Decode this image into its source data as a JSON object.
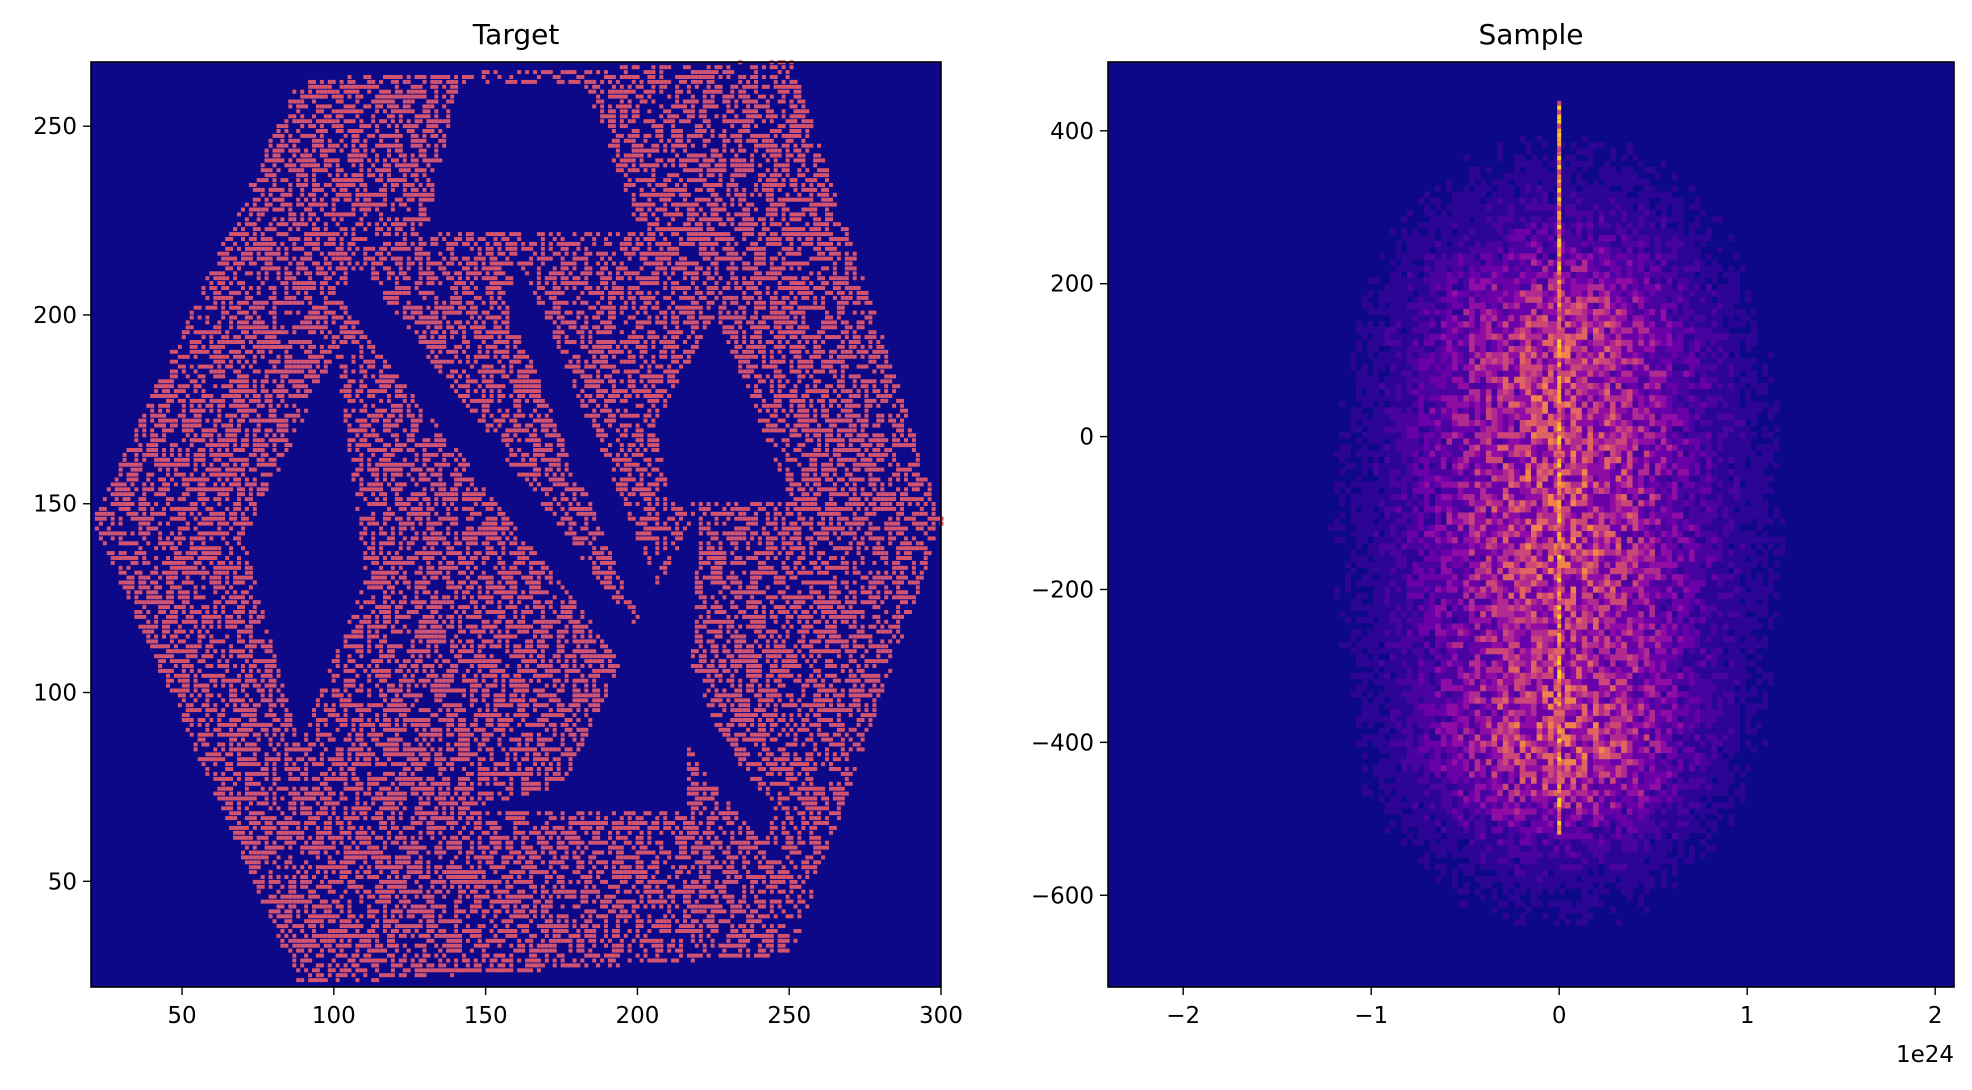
{
  "figure": {
    "background": "#ffffff",
    "axis_color": "#000000"
  },
  "chart_data": [
    {
      "type": "heatmap",
      "title": "Target",
      "xlabel": "",
      "ylabel": "",
      "xlim": [
        20,
        300
      ],
      "ylim": [
        22,
        267
      ],
      "x_ticks": [
        50,
        100,
        150,
        200,
        250,
        300
      ],
      "x_tick_labels": [
        "50",
        "100",
        "150",
        "200",
        "250",
        "300"
      ],
      "y_ticks": [
        50,
        100,
        150,
        200,
        250
      ],
      "y_tick_labels": [
        "50",
        "100",
        "150",
        "200",
        "250"
      ],
      "colormap": "plasma",
      "background_color": "#0d0887",
      "point_color": "#d5546e",
      "description_regions": [
        {
          "name": "left-diamond",
          "points": [
            [
              20,
              145
            ],
            [
              62,
              215
            ],
            [
              95,
              145
            ],
            [
              62,
              75
            ]
          ]
        },
        {
          "name": "lower-band",
          "points": [
            [
              95,
              22
            ],
            [
              245,
              22
            ],
            [
              245,
              60
            ],
            [
              200,
              60
            ],
            [
              150,
              60
            ],
            [
              95,
              60
            ]
          ]
        },
        {
          "name": "upper-band",
          "points": [
            [
              95,
              267
            ],
            [
              245,
              267
            ],
            [
              245,
              225
            ],
            [
              200,
              225
            ],
            [
              150,
              225
            ],
            [
              95,
              225
            ]
          ]
        },
        {
          "name": "right-diamond",
          "points": [
            [
              235,
              145
            ],
            [
              275,
              215
            ],
            [
              300,
              145
            ],
            [
              275,
              75
            ]
          ]
        },
        {
          "name": "center-x",
          "points": [
            [
              75,
              215
            ],
            [
              175,
              60
            ],
            [
              250,
              60
            ],
            [
              150,
              215
            ]
          ]
        }
      ]
    },
    {
      "type": "heatmap",
      "title": "Sample",
      "xlabel": "",
      "ylabel": "",
      "xlim": [
        -2.4,
        2.1
      ],
      "ylim": [
        -720,
        490
      ],
      "x_scale_offset": "1e24",
      "x_ticks": [
        -2,
        -1,
        0,
        1,
        2
      ],
      "x_tick_labels": [
        "−2",
        "−1",
        "0",
        "1",
        "2"
      ],
      "y_ticks": [
        -600,
        -400,
        -200,
        0,
        200,
        400
      ],
      "y_tick_labels": [
        "−600",
        "−400",
        "−200",
        "0",
        "200",
        "400"
      ],
      "colormap": "plasma",
      "background_color": "#0d0887",
      "density_center": [
        0.0,
        -130
      ],
      "spike": {
        "x": 0.0,
        "y_range": [
          -520,
          440
        ]
      }
    }
  ]
}
